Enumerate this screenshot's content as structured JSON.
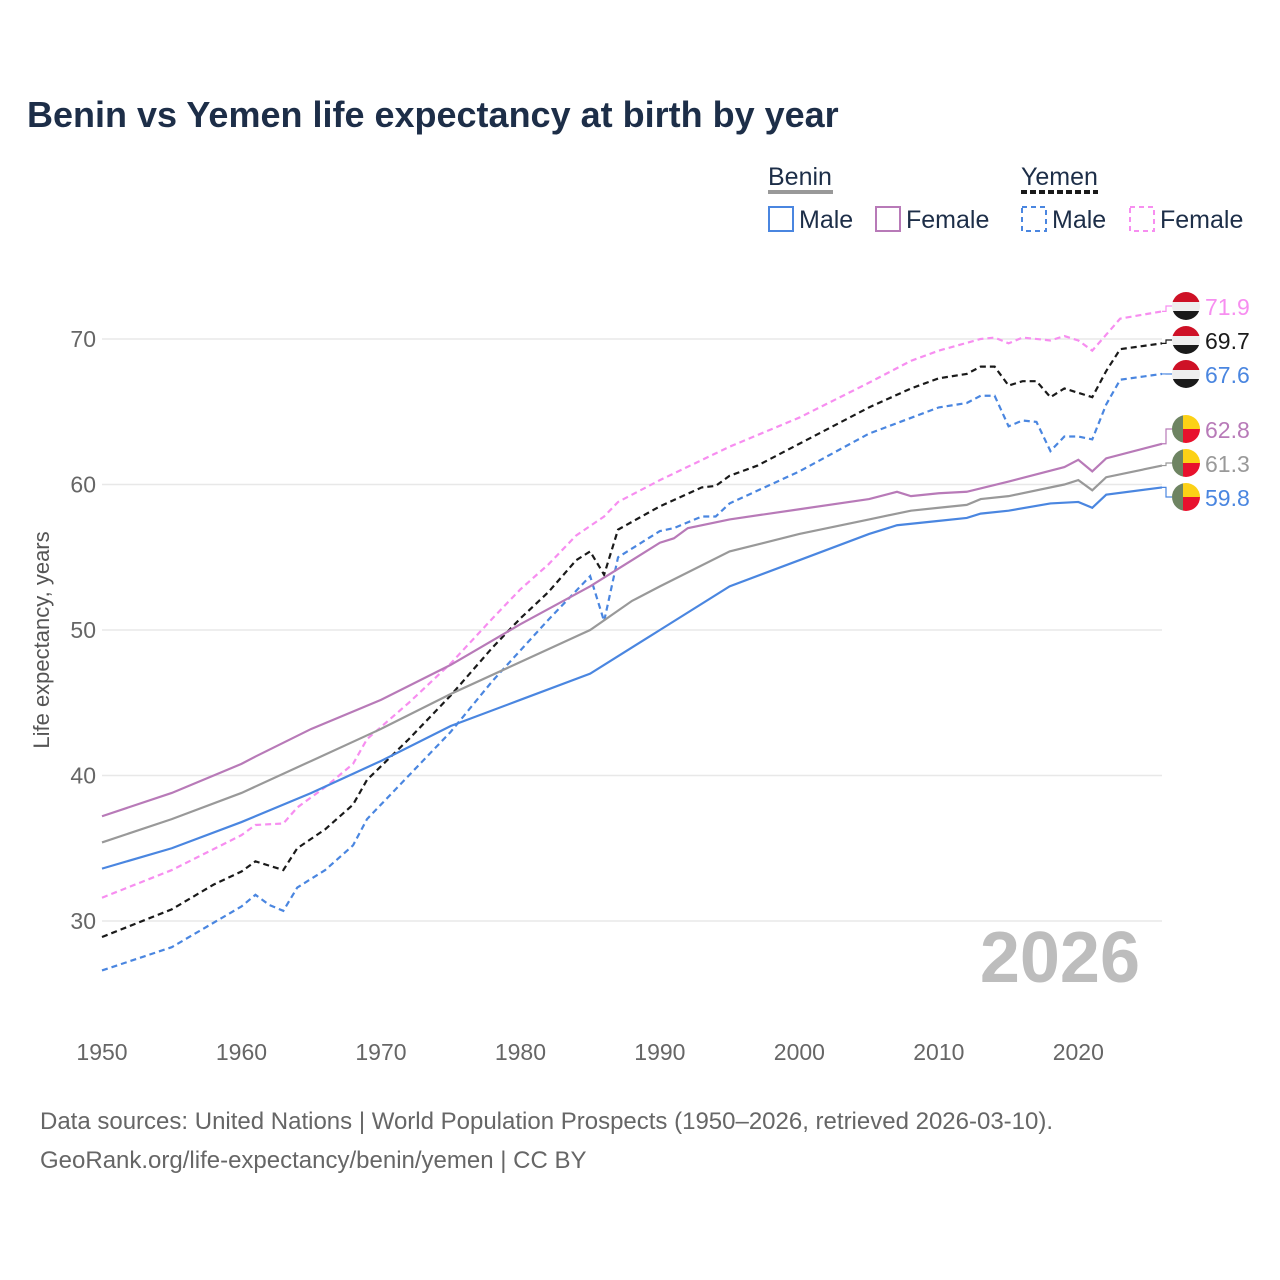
{
  "chart_data": {
    "type": "line",
    "title": "Benin vs Yemen life expectancy at birth by year",
    "ylabel": "Life expectancy, years",
    "xlabel": "",
    "xlim": [
      1950,
      2026
    ],
    "ylim": [
      24,
      76
    ],
    "xticks": [
      "1950",
      "1960",
      "1970",
      "1980",
      "1990",
      "2000",
      "2010",
      "2020"
    ],
    "yticks": [
      "30",
      "40",
      "50",
      "60",
      "70"
    ],
    "grid": true,
    "year_watermark": "2026",
    "legend": {
      "groups": [
        {
          "name": "Benin",
          "items": [
            "Male",
            "Female"
          ]
        },
        {
          "name": "Yemen",
          "items": [
            "Male",
            "Female"
          ]
        }
      ],
      "placement": "top-right"
    },
    "series": [
      {
        "name": "Yemen Female",
        "country": "Yemen",
        "color": "#f78ef0",
        "dashed": true,
        "end_label": "71.9",
        "x": [
          1950,
          1955,
          1960,
          1961,
          1963,
          1964,
          1966,
          1968,
          1969,
          1972,
          1975,
          1978,
          1980,
          1982,
          1984,
          1986,
          1987,
          1990,
          1995,
          2000,
          2005,
          2008,
          2010,
          2013,
          2014,
          2015,
          2016,
          2018,
          2019,
          2020,
          2021,
          2022,
          2023,
          2026
        ],
        "y": [
          31.6,
          33.5,
          35.9,
          36.6,
          36.7,
          37.8,
          39.2,
          40.8,
          42.5,
          45.0,
          47.7,
          50.8,
          52.8,
          54.5,
          56.5,
          57.8,
          58.8,
          60.3,
          62.6,
          64.6,
          67.0,
          68.5,
          69.2,
          70.0,
          70.1,
          69.7,
          70.1,
          69.9,
          70.2,
          69.9,
          69.2,
          70.3,
          71.4,
          71.9
        ]
      },
      {
        "name": "Yemen",
        "country": "Yemen",
        "color": "#1a1a1a",
        "dashed": true,
        "end_label": "69.7",
        "x": [
          1950,
          1955,
          1958,
          1960,
          1961,
          1963,
          1964,
          1966,
          1968,
          1969,
          1972,
          1975,
          1978,
          1980,
          1982,
          1984,
          1985,
          1986,
          1987,
          1990,
          1993,
          1994,
          1995,
          1997,
          2000,
          2005,
          2008,
          2010,
          2012,
          2013,
          2014,
          2015,
          2016,
          2017,
          2018,
          2019,
          2021,
          2022,
          2023,
          2026
        ],
        "y": [
          28.9,
          30.8,
          32.5,
          33.4,
          34.1,
          33.5,
          35.0,
          36.3,
          38.0,
          39.7,
          42.5,
          45.5,
          48.8,
          50.8,
          52.6,
          54.8,
          55.4,
          53.8,
          56.9,
          58.5,
          59.8,
          59.9,
          60.6,
          61.3,
          62.8,
          65.3,
          66.6,
          67.3,
          67.6,
          68.1,
          68.1,
          66.8,
          67.1,
          67.1,
          66.0,
          66.6,
          66.0,
          67.8,
          69.3,
          69.7
        ]
      },
      {
        "name": "Yemen Male",
        "country": "Yemen",
        "color": "#4a86e0",
        "dashed": true,
        "end_label": "67.6",
        "x": [
          1950,
          1955,
          1960,
          1961,
          1962,
          1963,
          1964,
          1966,
          1968,
          1969,
          1972,
          1975,
          1978,
          1980,
          1982,
          1985,
          1986,
          1987,
          1990,
          1991,
          1993,
          1994,
          1995,
          2000,
          2005,
          2010,
          2012,
          2013,
          2014,
          2015,
          2016,
          2017,
          2018,
          2019,
          2020,
          2021,
          2022,
          2023,
          2026
        ],
        "y": [
          26.6,
          28.2,
          31.0,
          31.8,
          31.1,
          30.7,
          32.3,
          33.5,
          35.2,
          37.0,
          40.0,
          43.0,
          46.5,
          48.6,
          50.7,
          53.7,
          50.6,
          55.0,
          56.8,
          57.0,
          57.8,
          57.8,
          58.7,
          60.9,
          63.5,
          65.3,
          65.6,
          66.1,
          66.1,
          64.0,
          64.4,
          64.3,
          62.3,
          63.3,
          63.3,
          63.1,
          65.5,
          67.2,
          67.6
        ]
      },
      {
        "name": "Benin Female",
        "country": "Benin",
        "color": "#b87ab8",
        "dashed": false,
        "end_label": "62.8",
        "x": [
          1950,
          1955,
          1960,
          1961,
          1965,
          1970,
          1975,
          1980,
          1985,
          1990,
          1991,
          1992,
          1995,
          2000,
          2005,
          2007,
          2008,
          2010,
          2012,
          2015,
          2019,
          2020,
          2021,
          2022,
          2026
        ],
        "y": [
          37.2,
          38.8,
          40.8,
          41.3,
          43.2,
          45.2,
          47.6,
          50.4,
          53.0,
          56.0,
          56.3,
          57.0,
          57.6,
          58.3,
          59.0,
          59.5,
          59.2,
          59.4,
          59.5,
          60.2,
          61.2,
          61.7,
          60.9,
          61.8,
          62.8
        ]
      },
      {
        "name": "Benin",
        "country": "Benin",
        "color": "#999999",
        "dashed": false,
        "end_label": "61.3",
        "x": [
          1950,
          1955,
          1960,
          1965,
          1970,
          1975,
          1980,
          1985,
          1988,
          1990,
          1995,
          2000,
          2005,
          2008,
          2010,
          2012,
          2013,
          2015,
          2019,
          2020,
          2021,
          2022,
          2026
        ],
        "y": [
          35.4,
          37.0,
          38.8,
          41.0,
          43.2,
          45.6,
          47.8,
          50.0,
          52.0,
          53.0,
          55.4,
          56.6,
          57.6,
          58.2,
          58.4,
          58.6,
          59.0,
          59.2,
          60.0,
          60.3,
          59.6,
          60.5,
          61.3
        ]
      },
      {
        "name": "Benin Male",
        "country": "Benin",
        "color": "#4a86e0",
        "dashed": false,
        "end_label": "59.8",
        "x": [
          1950,
          1955,
          1960,
          1965,
          1970,
          1975,
          1980,
          1985,
          1990,
          1995,
          2000,
          2005,
          2007,
          2010,
          2012,
          2013,
          2015,
          2018,
          2020,
          2021,
          2022,
          2026
        ],
        "y": [
          33.6,
          35.0,
          36.8,
          38.8,
          41.0,
          43.4,
          45.2,
          47.0,
          50.0,
          53.0,
          54.8,
          56.6,
          57.2,
          57.5,
          57.7,
          58.0,
          58.2,
          58.7,
          58.8,
          58.4,
          59.3,
          59.8
        ]
      }
    ]
  },
  "sources": {
    "line1": "Data sources: United Nations | World Population Prospects (1950–2026, retrieved 2026-03-10).",
    "line2": "GeoRank.org/life-expectancy/benin/yemen | CC BY"
  }
}
